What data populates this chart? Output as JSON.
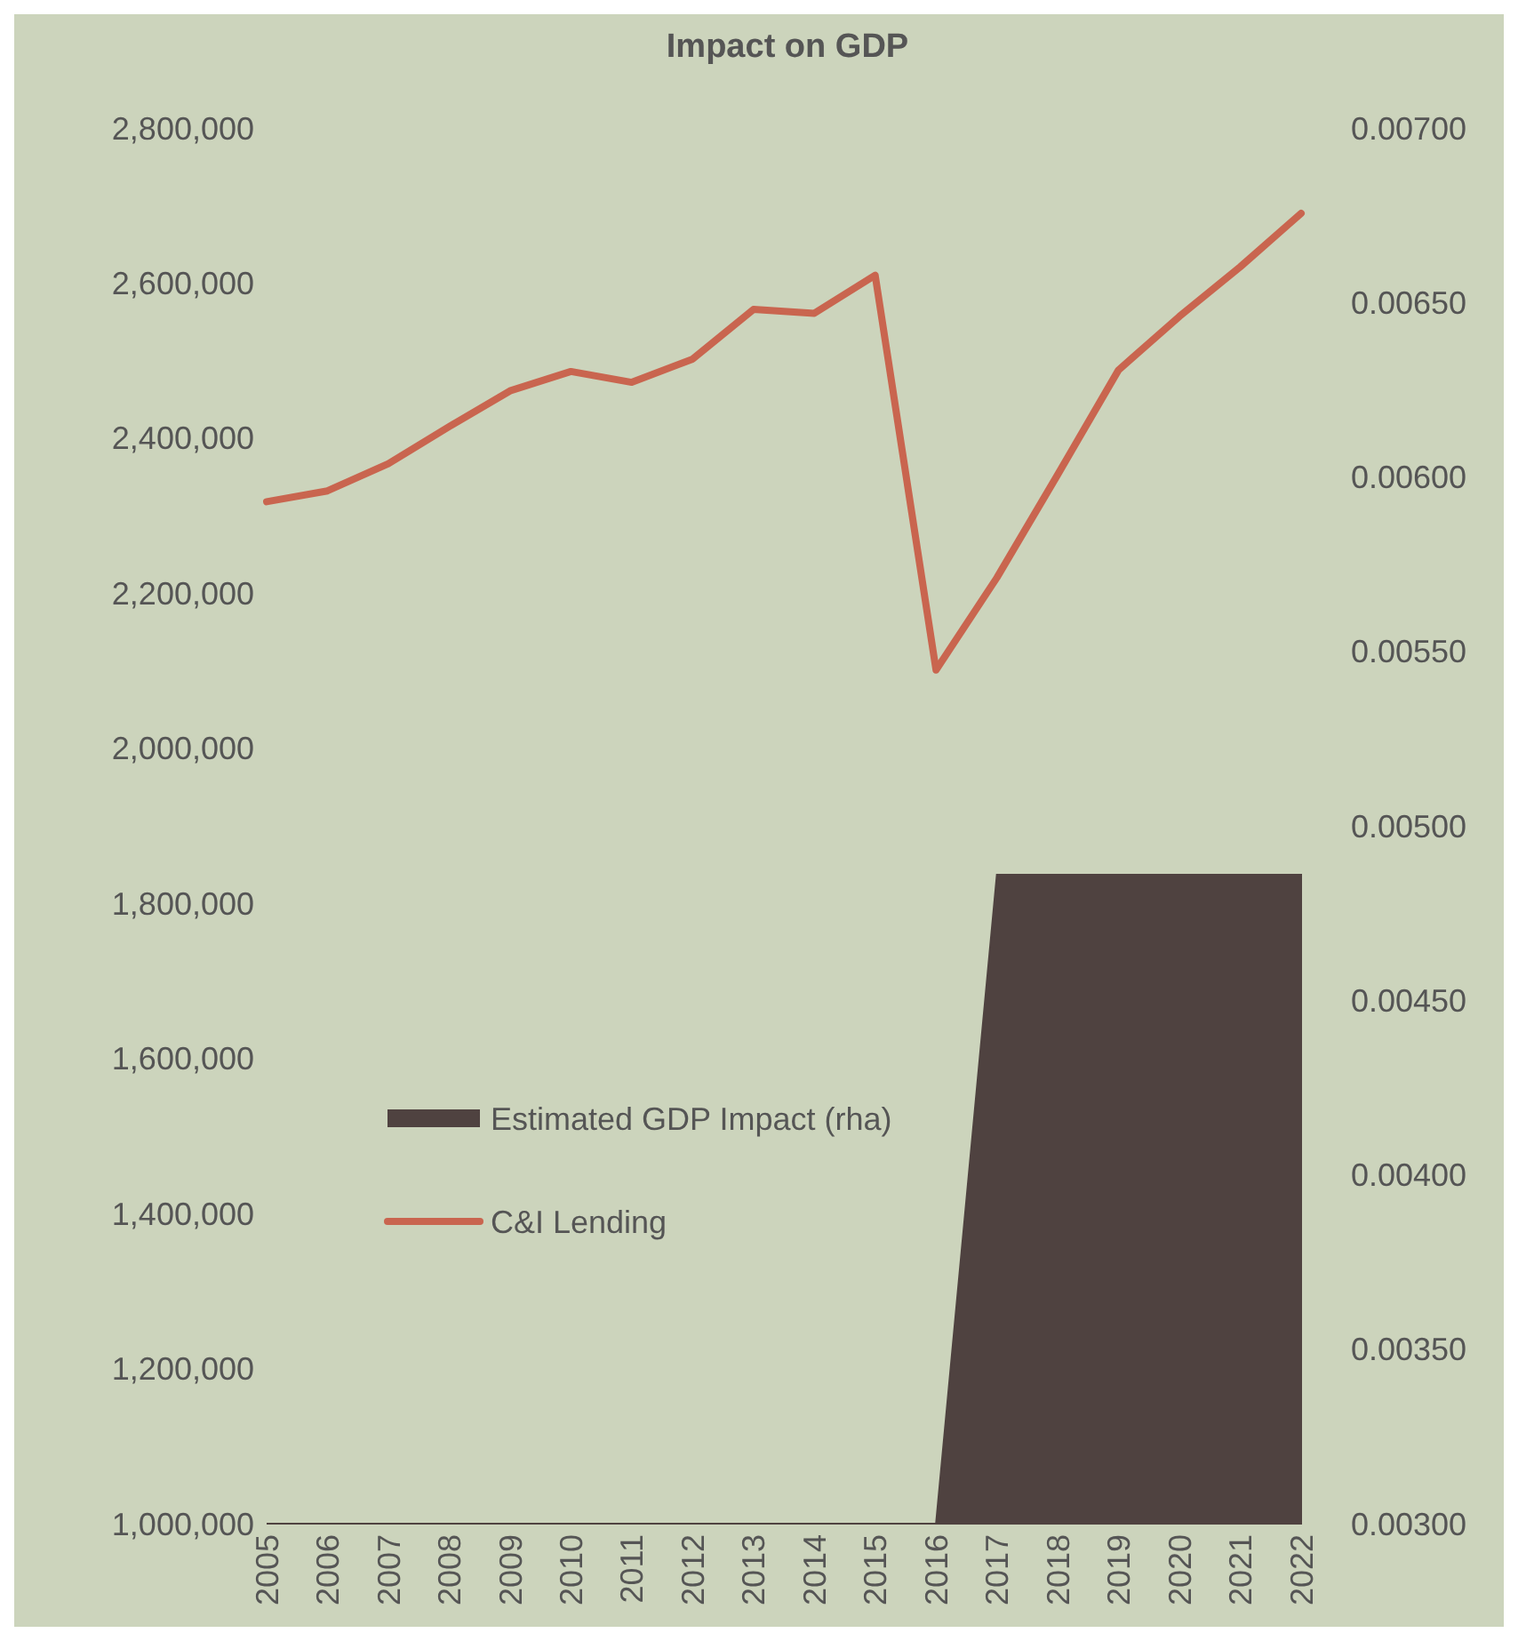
{
  "chart_data": {
    "type": "line",
    "title": "Impact on GDP",
    "categories": [
      "2005",
      "2006",
      "2007",
      "2008",
      "2009",
      "2010",
      "2011",
      "2012",
      "2013",
      "2014",
      "2015",
      "2016",
      "2017",
      "2018",
      "2019",
      "2020",
      "2021",
      "2022"
    ],
    "series": [
      {
        "name": "Estimated GDP Impact (rha)",
        "type": "area",
        "axis": "y2",
        "color": "#4f4240",
        "values": [
          0.003,
          0.003,
          0.003,
          0.003,
          0.003,
          0.003,
          0.003,
          0.003,
          0.003,
          0.003,
          0.003,
          0.003,
          0.00486,
          0.00486,
          0.00486,
          0.00486,
          0.00486,
          0.00486
        ]
      },
      {
        "name": "C&I Lending",
        "color": "#c9654f",
        "values": [
          2318000,
          2332000,
          2367000,
          2415000,
          2461000,
          2486000,
          2472000,
          2502000,
          2566000,
          2561000,
          2610000,
          2101000,
          2220000,
          2353000,
          2488000,
          2557000,
          2621000,
          2690000
        ]
      }
    ],
    "ylim": [
      1000000,
      2800000
    ],
    "yticks": [
      {
        "value": 1000000,
        "label": "1,000,000"
      },
      {
        "value": 1200000,
        "label": "1,200,000"
      },
      {
        "value": 1400000,
        "label": "1,400,000"
      },
      {
        "value": 1600000,
        "label": "1,600,000"
      },
      {
        "value": 1800000,
        "label": "1,800,000"
      },
      {
        "value": 2000000,
        "label": "2,000,000"
      },
      {
        "value": 2200000,
        "label": "2,200,000"
      },
      {
        "value": 2400000,
        "label": "2,400,000"
      },
      {
        "value": 2600000,
        "label": "2,600,000"
      },
      {
        "value": 2800000,
        "label": "2,800,000"
      }
    ],
    "y2lim": [
      0.003,
      0.007
    ],
    "y2ticks": [
      {
        "value": 0.003,
        "label": "0.00300"
      },
      {
        "value": 0.0035,
        "label": "0.00350"
      },
      {
        "value": 0.004,
        "label": "0.00400"
      },
      {
        "value": 0.0045,
        "label": "0.00450"
      },
      {
        "value": 0.005,
        "label": "0.00500"
      },
      {
        "value": 0.0055,
        "label": "0.00550"
      },
      {
        "value": 0.006,
        "label": "0.00600"
      },
      {
        "value": 0.0065,
        "label": "0.00650"
      },
      {
        "value": 0.007,
        "label": "0.00700"
      }
    ],
    "grid": false,
    "legend": "left",
    "line_style": "solid",
    "marker": "none"
  }
}
